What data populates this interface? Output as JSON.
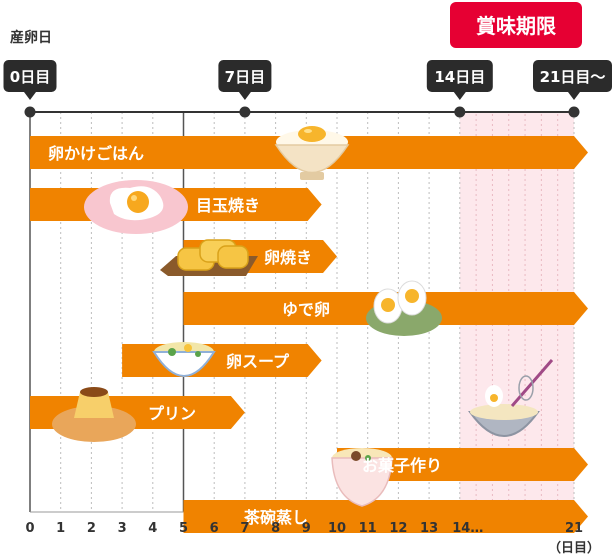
{
  "header": {
    "origin_label": "産卵日",
    "expiry_badge": "賞味期限"
  },
  "milestones": [
    {
      "label": "0日目",
      "day": 0
    },
    {
      "label": "7日目",
      "day": 7
    },
    {
      "label": "14日目",
      "day": 14
    },
    {
      "label": "21日目〜",
      "day": 21
    }
  ],
  "colors": {
    "bar": "#f08300",
    "badge": "#e60033",
    "label_bg": "#2b2b2b",
    "expiry_zone": "#fde8ec"
  },
  "chart_data": {
    "type": "bar",
    "x_axis": {
      "ticks": [
        "0",
        "1",
        "2",
        "3",
        "4",
        "5",
        "6",
        "7",
        "8",
        "9",
        "10",
        "11",
        "12",
        "13",
        "14…",
        "21"
      ],
      "unit_label": "（日目）"
    },
    "rows": [
      {
        "name": "卵かけごはん",
        "start": 0,
        "end": 21,
        "icon": "rice-bowl-with-egg-icon"
      },
      {
        "name": "目玉焼き",
        "start": 0,
        "end": 9.5,
        "icon": "fried-egg-icon"
      },
      {
        "name": "卵焼き",
        "start": 5,
        "end": 10,
        "icon": "tamagoyaki-icon"
      },
      {
        "name": "ゆで卵",
        "start": 5,
        "end": 21,
        "icon": "boiled-egg-icon"
      },
      {
        "name": "卵スープ",
        "start": 3,
        "end": 9.5,
        "icon": "egg-soup-icon"
      },
      {
        "name": "プリン",
        "start": 0,
        "end": 7,
        "icon": "pudding-icon"
      },
      {
        "name": "お菓子作り",
        "start": 10,
        "end": 21,
        "icon": "baking-bowl-icon"
      },
      {
        "name": "茶碗蒸し",
        "start": 5,
        "end": 21,
        "icon": "chawanmushi-icon"
      }
    ]
  }
}
